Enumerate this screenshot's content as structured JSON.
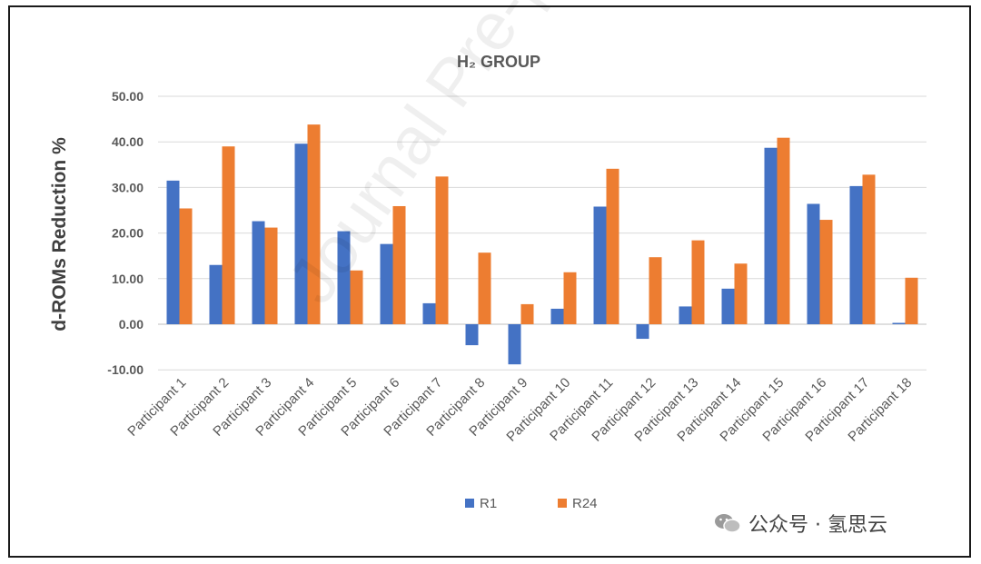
{
  "chart_data": {
    "type": "bar",
    "title": "H₂ GROUP",
    "xlabel": "",
    "ylabel": "d-ROMs Reduction %",
    "ylim": [
      -10,
      50
    ],
    "yticks": [
      "50.00",
      "40.00",
      "30.00",
      "20.00",
      "10.00",
      "0.00",
      "-10.00"
    ],
    "ytick_values": [
      50,
      40,
      30,
      20,
      10,
      0,
      -10
    ],
    "grid": true,
    "legend_position": "bottom",
    "categories": [
      "Participant 1",
      "Participant 2",
      "Participant 3",
      "Participant 4",
      "Participant 5",
      "Participant 6",
      "Participant 7",
      "Participant 8",
      "Participant 9",
      "Participant 10",
      "Participant 11",
      "Participant 12",
      "Participant 13",
      "Participant 14",
      "Participant 15",
      "Participant 16",
      "Participant 17",
      "Participant 18"
    ],
    "series": [
      {
        "name": "R1",
        "color": "#4472C4",
        "values": [
          31.5,
          13.0,
          22.6,
          39.6,
          20.4,
          17.6,
          4.6,
          -4.6,
          -8.8,
          3.4,
          25.8,
          -3.2,
          3.9,
          7.8,
          38.7,
          26.4,
          30.3,
          0.3
        ]
      },
      {
        "name": "R24",
        "color": "#ED7D31",
        "values": [
          25.4,
          39.0,
          21.2,
          43.8,
          11.8,
          25.9,
          32.4,
          15.7,
          4.4,
          11.4,
          34.1,
          14.7,
          18.4,
          13.3,
          40.9,
          22.9,
          32.8,
          10.2
        ]
      }
    ]
  },
  "watermark_text": "Journal Pre-proof",
  "brand": {
    "label": "公众号 · 氢思云",
    "icon": "wechat-icon"
  }
}
